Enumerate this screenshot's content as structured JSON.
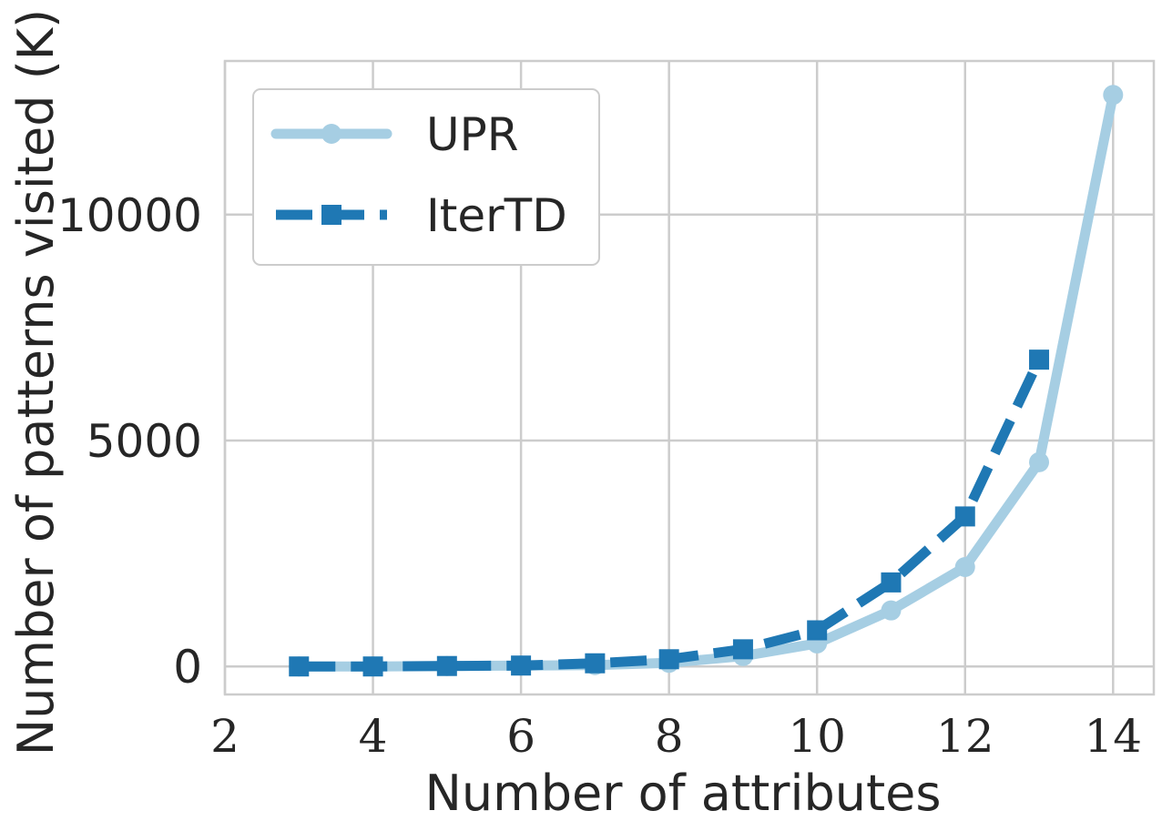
{
  "chart_data": {
    "type": "line",
    "xlabel": "Number of attributes",
    "ylabel": "Number of patterns visited (K)",
    "xlim": [
      2,
      14.55
    ],
    "ylim": [
      -620,
      13400
    ],
    "xticks": [
      2,
      4,
      6,
      8,
      10,
      12,
      14
    ],
    "yticks": [
      0,
      5000,
      10000
    ],
    "grid": true,
    "legend_position": "top-left",
    "series": [
      {
        "name": "UPR",
        "color": "#a6cee3",
        "style": "solid",
        "marker": "circle",
        "x": [
          3,
          4,
          5,
          6,
          7,
          8,
          9,
          10,
          11,
          12,
          13,
          14
        ],
        "y": [
          0,
          0,
          10,
          20,
          30,
          80,
          230,
          510,
          1240,
          2200,
          4520,
          12650
        ]
      },
      {
        "name": "IterTD",
        "color": "#1f78b4",
        "style": "dashed",
        "marker": "square",
        "x": [
          3,
          4,
          5,
          6,
          7,
          8,
          9,
          10,
          11,
          12,
          13
        ],
        "y": [
          0,
          0,
          10,
          20,
          70,
          160,
          380,
          800,
          1860,
          3320,
          6790
        ]
      }
    ]
  }
}
